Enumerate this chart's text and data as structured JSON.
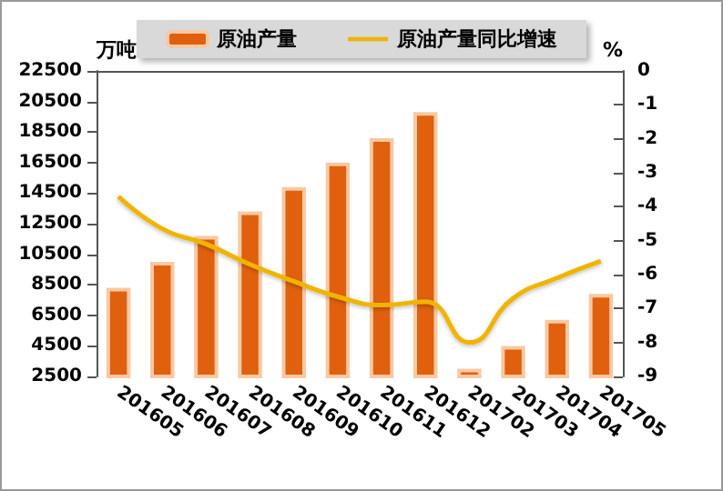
{
  "chart_data": {
    "type": "bar",
    "ylabel": "万吨",
    "y2label": "%",
    "categories": [
      "201605",
      "201606",
      "201607",
      "201608",
      "201609",
      "201610",
      "201611",
      "201612",
      "201702",
      "201703",
      "201704",
      "201705"
    ],
    "series": [
      {
        "name": "原油产量",
        "color": "#e0600e",
        "values": [
          8300,
          10000,
          11700,
          13300,
          14900,
          16500,
          18100,
          19800,
          3000,
          4500,
          6200,
          7900
        ]
      },
      {
        "name": "原油产量同比增速",
        "type": "line",
        "axis": "y2",
        "color": "#f0b400",
        "values": [
          -3.7,
          -4.65,
          -5.1,
          -5.7,
          -6.2,
          -6.65,
          -6.9,
          -6.8,
          -8.0,
          -6.7,
          -6.1,
          -5.6
        ]
      }
    ],
    "ylim": [
      2500,
      22500
    ],
    "yticks": [
      2500,
      4500,
      6500,
      8500,
      10500,
      12500,
      14500,
      16500,
      18500,
      20500,
      22500
    ],
    "y2lim": [
      -9,
      0
    ],
    "y2ticks": [
      -9,
      -8,
      -7,
      -6,
      -5,
      -4,
      -3,
      -2,
      -1,
      0
    ],
    "legend": "top",
    "grid": false,
    "marker": "none",
    "line_style": "solid"
  }
}
